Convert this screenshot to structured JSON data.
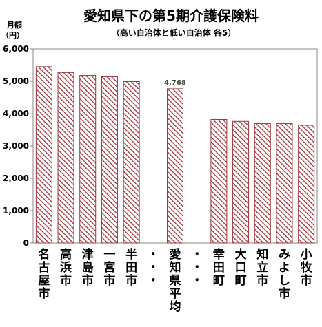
{
  "chart_data": {
    "type": "bar",
    "title": "愛知県下の第5期介護保険料",
    "subtitle": "（高い自治体と低い自治体 各5）",
    "ylabel_lines": [
      "月額",
      "（円）"
    ],
    "ylim": [
      0,
      6000
    ],
    "ytick_labels": [
      "0",
      "1,000",
      "2,000",
      "3,000",
      "4,000",
      "5,000",
      "6,000"
    ],
    "ytick_values": [
      0,
      1000,
      2000,
      3000,
      4000,
      5000,
      6000
    ],
    "categories": [
      "名古屋市",
      "高浜市",
      "津島市",
      "一宮市",
      "半田市",
      "・・・",
      "愛知県平均",
      "・・・",
      "幸田町",
      "大口町",
      "知立市",
      "みよし市",
      "小牧市"
    ],
    "values": [
      5450,
      5270,
      5180,
      5140,
      4990,
      null,
      4768,
      null,
      3820,
      3760,
      3690,
      3690,
      3640
    ],
    "data_labels": [
      null,
      null,
      null,
      null,
      null,
      null,
      "4,768",
      null,
      null,
      null,
      null,
      null,
      null
    ],
    "grid": false,
    "bar_color": "#a0343a",
    "bar_pattern": "diagonal-hatch"
  }
}
